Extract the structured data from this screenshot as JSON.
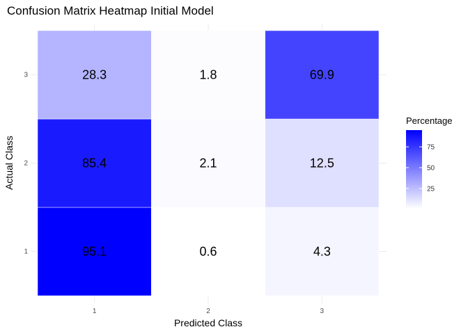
{
  "chart_data": {
    "type": "heatmap",
    "title": "Confusion Matrix Heatmap Initial Model",
    "xlabel": "Predicted Class",
    "ylabel": "Actual Class",
    "x_categories": [
      "1",
      "2",
      "3"
    ],
    "y_categories": [
      "1",
      "2",
      "3"
    ],
    "cells": [
      {
        "actual": "1",
        "predicted": "1",
        "value": 95.1,
        "label": "95.1"
      },
      {
        "actual": "1",
        "predicted": "2",
        "value": 0.6,
        "label": "0.6"
      },
      {
        "actual": "1",
        "predicted": "3",
        "value": 4.3,
        "label": "4.3"
      },
      {
        "actual": "2",
        "predicted": "1",
        "value": 85.4,
        "label": "85.4"
      },
      {
        "actual": "2",
        "predicted": "2",
        "value": 2.1,
        "label": "2.1"
      },
      {
        "actual": "2",
        "predicted": "3",
        "value": 12.5,
        "label": "12.5"
      },
      {
        "actual": "3",
        "predicted": "1",
        "value": 28.3,
        "label": "28.3"
      },
      {
        "actual": "3",
        "predicted": "2",
        "value": 1.8,
        "label": "1.8"
      },
      {
        "actual": "3",
        "predicted": "3",
        "value": 69.9,
        "label": "69.9"
      }
    ],
    "legend": {
      "title": "Percentage",
      "ticks": [
        25,
        50,
        75
      ],
      "range": [
        0.6,
        95.1
      ],
      "placement": "right",
      "low_color": "#ffffff",
      "high_color": "#0000ff"
    },
    "grid": true
  }
}
